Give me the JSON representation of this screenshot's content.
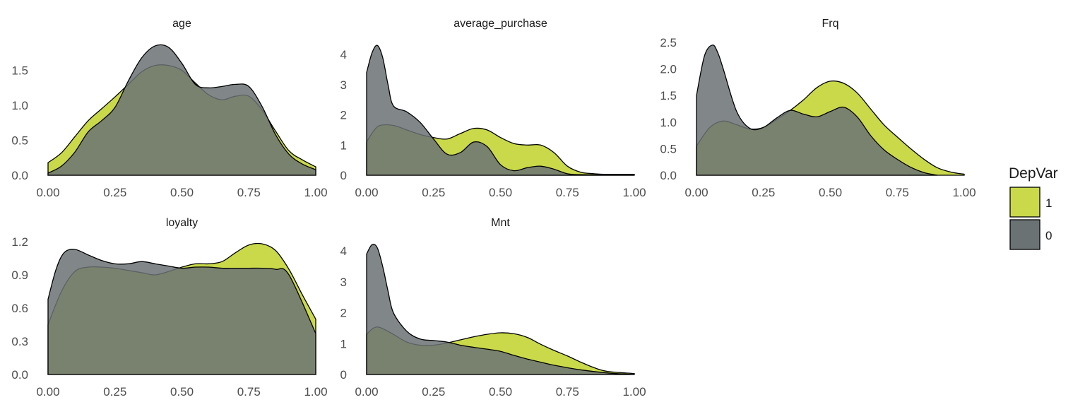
{
  "chart_data": {
    "type": "area",
    "legend": {
      "title": "DepVar",
      "position": "right",
      "entries": [
        {
          "label": "1",
          "color": "#c9d94a"
        },
        {
          "label": "0",
          "color": "#6b7274"
        }
      ]
    },
    "x_ticks": [
      0,
      0.25,
      0.5,
      0.75,
      1
    ],
    "x_tick_labels": [
      "0.00",
      "0.25",
      "0.50",
      "0.75",
      "1.00"
    ],
    "xlim": [
      0,
      1
    ],
    "grid": false,
    "panels": [
      {
        "title": "age",
        "ylim": [
          0,
          1.9
        ],
        "y_ticks": [
          0,
          0.5,
          1.0,
          1.5
        ],
        "y_tick_labels": [
          "0.0",
          "0.5",
          "1.0",
          "1.5"
        ],
        "series": [
          {
            "name": "1",
            "x": [
              0,
              0.05,
              0.1,
              0.15,
              0.2,
              0.25,
              0.3,
              0.35,
              0.4,
              0.45,
              0.5,
              0.55,
              0.6,
              0.65,
              0.7,
              0.75,
              0.8,
              0.85,
              0.9,
              0.95,
              1.0
            ],
            "y": [
              0.18,
              0.32,
              0.55,
              0.78,
              0.95,
              1.12,
              1.3,
              1.48,
              1.57,
              1.57,
              1.5,
              1.32,
              1.15,
              1.08,
              1.13,
              1.13,
              0.93,
              0.63,
              0.35,
              0.22,
              0.12
            ]
          },
          {
            "name": "0",
            "x": [
              0,
              0.05,
              0.1,
              0.15,
              0.2,
              0.25,
              0.3,
              0.35,
              0.4,
              0.45,
              0.5,
              0.55,
              0.6,
              0.65,
              0.7,
              0.75,
              0.8,
              0.85,
              0.9,
              0.95,
              1.0
            ],
            "y": [
              0.03,
              0.13,
              0.33,
              0.62,
              0.78,
              0.97,
              1.35,
              1.68,
              1.85,
              1.83,
              1.6,
              1.3,
              1.25,
              1.27,
              1.3,
              1.27,
              0.98,
              0.58,
              0.3,
              0.16,
              0.08
            ]
          }
        ]
      },
      {
        "title": "average_purchase",
        "ylim": [
          0,
          4.4
        ],
        "y_ticks": [
          0,
          1,
          2,
          3,
          4
        ],
        "y_tick_labels": [
          "0",
          "1",
          "2",
          "3",
          "4"
        ],
        "series": [
          {
            "name": "1",
            "x": [
              0,
              0.025,
              0.05,
              0.1,
              0.15,
              0.2,
              0.25,
              0.3,
              0.35,
              0.4,
              0.45,
              0.5,
              0.55,
              0.6,
              0.65,
              0.7,
              0.75,
              0.8,
              0.85,
              0.9,
              1.0
            ],
            "y": [
              1.1,
              1.45,
              1.65,
              1.65,
              1.5,
              1.35,
              1.25,
              1.2,
              1.38,
              1.55,
              1.5,
              1.25,
              1.05,
              1.0,
              1.0,
              0.75,
              0.3,
              0.1,
              0.05,
              0.03,
              0.03
            ]
          },
          {
            "name": "0",
            "x": [
              0,
              0.02,
              0.04,
              0.06,
              0.08,
              0.1,
              0.15,
              0.2,
              0.25,
              0.3,
              0.35,
              0.4,
              0.45,
              0.5,
              0.55,
              0.6,
              0.65,
              0.7,
              0.75,
              0.8,
              1.0
            ],
            "y": [
              3.4,
              4.05,
              4.3,
              3.9,
              3.0,
              2.3,
              2.1,
              1.75,
              1.2,
              0.7,
              0.75,
              1.1,
              0.95,
              0.35,
              0.15,
              0.25,
              0.3,
              0.2,
              0.05,
              0.02,
              0.0
            ]
          }
        ]
      },
      {
        "title": "Frq",
        "ylim": [
          0,
          2.5
        ],
        "y_ticks": [
          0,
          0.5,
          1.0,
          1.5,
          2.0,
          2.5
        ],
        "y_tick_labels": [
          "0.0",
          "0.5",
          "1.0",
          "1.5",
          "2.0",
          "2.5"
        ],
        "series": [
          {
            "name": "1",
            "x": [
              0,
              0.05,
              0.1,
              0.15,
              0.2,
              0.25,
              0.3,
              0.35,
              0.4,
              0.45,
              0.5,
              0.55,
              0.6,
              0.65,
              0.7,
              0.75,
              0.8,
              0.85,
              0.9,
              0.95,
              1.0
            ],
            "y": [
              0.55,
              0.9,
              1.02,
              0.95,
              0.87,
              0.9,
              1.05,
              1.22,
              1.42,
              1.65,
              1.77,
              1.73,
              1.55,
              1.25,
              0.95,
              0.72,
              0.5,
              0.3,
              0.14,
              0.06,
              0.02
            ]
          },
          {
            "name": "0",
            "x": [
              0,
              0.03,
              0.06,
              0.08,
              0.1,
              0.15,
              0.2,
              0.25,
              0.3,
              0.35,
              0.4,
              0.45,
              0.5,
              0.55,
              0.6,
              0.65,
              0.7,
              0.75,
              0.8,
              0.85,
              0.9
            ],
            "y": [
              1.5,
              2.25,
              2.45,
              2.3,
              2.0,
              1.2,
              0.88,
              0.9,
              1.08,
              1.22,
              1.15,
              1.1,
              1.2,
              1.28,
              1.1,
              0.75,
              0.48,
              0.3,
              0.15,
              0.05,
              0.0
            ]
          }
        ]
      },
      {
        "title": "loyalty",
        "ylim": [
          0,
          1.2
        ],
        "y_ticks": [
          0,
          0.3,
          0.6,
          0.9,
          1.2
        ],
        "y_tick_labels": [
          "0.0",
          "0.3",
          "0.6",
          "0.9",
          "1.2"
        ],
        "series": [
          {
            "name": "1",
            "x": [
              0,
              0.05,
              0.1,
              0.15,
              0.2,
              0.25,
              0.3,
              0.35,
              0.4,
              0.45,
              0.5,
              0.55,
              0.6,
              0.65,
              0.7,
              0.75,
              0.8,
              0.85,
              0.9,
              0.95,
              1.0
            ],
            "y": [
              0.45,
              0.75,
              0.93,
              0.97,
              0.97,
              0.96,
              0.94,
              0.92,
              0.9,
              0.93,
              0.97,
              1.0,
              1.0,
              1.02,
              1.1,
              1.17,
              1.18,
              1.12,
              0.95,
              0.72,
              0.5
            ]
          },
          {
            "name": "0",
            "x": [
              0,
              0.03,
              0.06,
              0.1,
              0.15,
              0.2,
              0.25,
              0.3,
              0.35,
              0.4,
              0.45,
              0.5,
              0.55,
              0.6,
              0.65,
              0.7,
              0.75,
              0.8,
              0.85,
              0.9,
              1.0
            ],
            "y": [
              0.68,
              0.95,
              1.1,
              1.13,
              1.08,
              1.03,
              1.0,
              1.0,
              1.02,
              1.0,
              0.98,
              0.96,
              0.97,
              0.97,
              0.96,
              0.96,
              0.96,
              0.96,
              0.95,
              0.9,
              0.37
            ]
          }
        ]
      },
      {
        "title": "Mnt",
        "ylim": [
          0,
          4.3
        ],
        "y_ticks": [
          0,
          1,
          2,
          3,
          4
        ],
        "y_tick_labels": [
          "0",
          "1",
          "2",
          "3",
          "4"
        ],
        "series": [
          {
            "name": "1",
            "x": [
              0,
              0.025,
              0.05,
              0.1,
              0.15,
              0.2,
              0.25,
              0.3,
              0.35,
              0.4,
              0.45,
              0.5,
              0.55,
              0.6,
              0.65,
              0.7,
              0.75,
              0.8,
              0.85,
              0.9,
              1.0
            ],
            "y": [
              1.3,
              1.5,
              1.52,
              1.3,
              1.05,
              0.95,
              0.95,
              1.02,
              1.12,
              1.22,
              1.3,
              1.35,
              1.32,
              1.2,
              0.98,
              0.78,
              0.6,
              0.4,
              0.22,
              0.1,
              0.03
            ]
          },
          {
            "name": "0",
            "x": [
              0,
              0.02,
              0.04,
              0.06,
              0.08,
              0.1,
              0.15,
              0.2,
              0.25,
              0.3,
              0.35,
              0.4,
              0.45,
              0.5,
              0.55,
              0.6,
              0.65,
              0.7,
              0.8,
              0.9,
              1.0
            ],
            "y": [
              3.9,
              4.2,
              4.1,
              3.5,
              2.7,
              2.0,
              1.4,
              1.15,
              1.1,
              1.05,
              0.95,
              0.88,
              0.82,
              0.75,
              0.62,
              0.5,
              0.4,
              0.3,
              0.15,
              0.05,
              0.0
            ]
          }
        ]
      }
    ]
  }
}
